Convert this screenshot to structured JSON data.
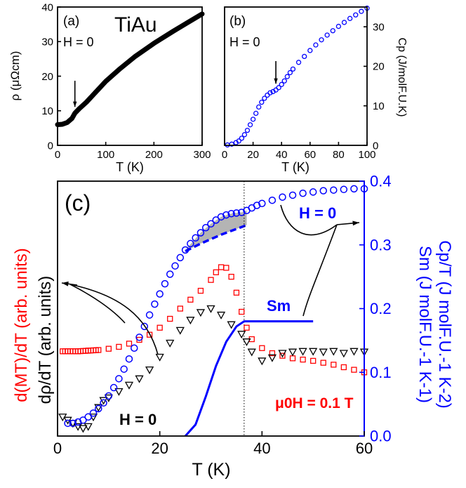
{
  "colors": {
    "black": "#000000",
    "blue": "#0000ff",
    "red": "#ff0000",
    "grey": "#b4b4b4"
  },
  "chart_data": [
    {
      "panel": "a",
      "type": "line",
      "panel_label": "(a)",
      "title": "TiAu",
      "annotation": "H = 0",
      "xlabel": "T (K)",
      "ylabel": "ρ (μΩcm)",
      "xlim": [
        0,
        300
      ],
      "ylim": [
        0,
        40
      ],
      "xticks": [
        "0",
        "100",
        "200",
        "300"
      ],
      "yticks": [
        "0",
        "10",
        "20",
        "30",
        "40"
      ],
      "arrow_at_T": 36,
      "series": [
        {
          "name": "ρ",
          "x": [
            0,
            10,
            20,
            30,
            36,
            45,
            60,
            80,
            100,
            130,
            160,
            200,
            240,
            270,
            300
          ],
          "y": [
            6.0,
            6.1,
            6.6,
            7.8,
            9.3,
            10.6,
            12.5,
            15.5,
            18.5,
            22.2,
            25.6,
            29.5,
            33.0,
            35.5,
            38.0
          ]
        }
      ]
    },
    {
      "panel": "b",
      "type": "scatter",
      "panel_label": "(b)",
      "annotation": "H = 0",
      "xlabel": "T (K)",
      "ylabel": "Cp (J/molF.U.K)",
      "xlim": [
        0,
        100
      ],
      "ylim": [
        0,
        35
      ],
      "xticks": [
        "0",
        "20",
        "40",
        "60",
        "80",
        "100"
      ],
      "yticks": [
        "0",
        "10",
        "20",
        "30"
      ],
      "arrow_at_T": 36,
      "series": [
        {
          "name": "Cp",
          "x": [
            2,
            5,
            8,
            10,
            12,
            14,
            16,
            18,
            20,
            22,
            24,
            26,
            28,
            30,
            32,
            34,
            36,
            38,
            40,
            42,
            44,
            46,
            48,
            52,
            56,
            60,
            64,
            68,
            72,
            76,
            80,
            84,
            88,
            92,
            96,
            100
          ],
          "y": [
            0.1,
            0.3,
            0.7,
            1.1,
            1.8,
            2.7,
            3.8,
            5.2,
            6.6,
            8.1,
            9.7,
            10.9,
            11.9,
            12.7,
            13.3,
            13.6,
            14.0,
            14.6,
            15.4,
            16.3,
            17.4,
            18.4,
            19.3,
            21.0,
            22.5,
            24.0,
            25.4,
            26.7,
            27.9,
            29.0,
            30.1,
            31.1,
            32.1,
            33.0,
            33.9,
            34.7
          ]
        }
      ]
    },
    {
      "panel": "c",
      "type": "scatter",
      "panel_label": "(c)",
      "xlabel": "T (K)",
      "ylabel_left_red": "d(MT)/dT (arb. units)",
      "ylabel_left_black": "dρ/dT (arb. units)",
      "ylabel_right_1": "Sm (J molF.U.-1 K-1)",
      "ylabel_right_2": "Cp/T (J molF.U.-1 K-2)",
      "xlim": [
        0,
        60
      ],
      "ylim_right": [
        0,
        0.4
      ],
      "xticks": [
        "0",
        "20",
        "40",
        "60"
      ],
      "yticks_right": [
        "0.0",
        "0.1",
        "0.2",
        "0.3",
        "0.4"
      ],
      "vline_T": 36.5,
      "annotations": {
        "h0_blue": "H = 0",
        "h0_black": "H = 0",
        "sm": "Sm",
        "field": "μ0H = 0.1 T"
      },
      "series": [
        {
          "name": "Cp/T",
          "axis": "right",
          "x": [
            2,
            3,
            4,
            5,
            6,
            7,
            8,
            9,
            10,
            11,
            12,
            13,
            14,
            15,
            16,
            17,
            18,
            19,
            20,
            21,
            22,
            23,
            24,
            25,
            26,
            27,
            28,
            29,
            30,
            31,
            32,
            33,
            34,
            35,
            36,
            37,
            38,
            39,
            40,
            42,
            44,
            46,
            48,
            50,
            52,
            54,
            56,
            58,
            60
          ],
          "y": [
            0.02,
            0.02,
            0.022,
            0.025,
            0.03,
            0.036,
            0.043,
            0.052,
            0.063,
            0.076,
            0.09,
            0.105,
            0.121,
            0.138,
            0.155,
            0.172,
            0.19,
            0.207,
            0.223,
            0.239,
            0.254,
            0.267,
            0.28,
            0.292,
            0.302,
            0.311,
            0.319,
            0.327,
            0.333,
            0.339,
            0.344,
            0.347,
            0.349,
            0.35,
            0.351,
            0.354,
            0.358,
            0.362,
            0.365,
            0.37,
            0.375,
            0.378,
            0.381,
            0.383,
            0.385,
            0.386,
            0.387,
            0.388,
            0.388
          ]
        },
        {
          "name": "Cp/T lattice baseline",
          "axis": "right",
          "x": [
            25,
            28,
            30,
            32,
            34,
            36,
            37
          ],
          "y": [
            0.29,
            0.302,
            0.309,
            0.316,
            0.322,
            0.328,
            0.331
          ]
        },
        {
          "name": "Sm",
          "axis": "right",
          "x": [
            25,
            27,
            29,
            31,
            33,
            35,
            36.5,
            40,
            45,
            50
          ],
          "y": [
            0.0,
            0.018,
            0.062,
            0.11,
            0.148,
            0.172,
            0.18,
            0.18,
            0.18,
            0.18
          ]
        },
        {
          "name": "d(MT)/dT (μ0H = 0.1 T)",
          "axis": "left",
          "x": [
            2,
            4,
            6,
            8,
            10,
            12,
            14,
            16,
            18,
            20,
            22,
            24,
            26,
            28,
            30,
            31,
            32,
            33,
            34,
            35,
            36,
            37,
            38,
            40,
            42,
            44,
            46,
            48,
            50,
            52,
            54,
            56,
            58,
            60
          ],
          "y": [
            0.133,
            0.133,
            0.134,
            0.135,
            0.137,
            0.14,
            0.145,
            0.151,
            0.159,
            0.17,
            0.184,
            0.2,
            0.214,
            0.228,
            0.245,
            0.257,
            0.265,
            0.264,
            0.25,
            0.225,
            0.195,
            0.17,
            0.152,
            0.138,
            0.13,
            0.126,
            0.122,
            0.12,
            0.118,
            0.115,
            0.112,
            0.108,
            0.104,
            0.1
          ]
        },
        {
          "name": "dρ/dT (H = 0)",
          "axis": "left",
          "x": [
            1,
            2,
            3,
            4,
            5,
            6,
            7,
            8,
            9,
            10,
            12,
            14,
            16,
            18,
            20,
            22,
            24,
            26,
            28,
            30,
            32,
            34,
            36,
            37,
            38,
            40,
            42,
            44,
            46,
            48,
            50,
            52,
            54,
            56,
            58,
            60
          ],
          "y": [
            0.03,
            0.025,
            0.02,
            0.015,
            0.012,
            0.015,
            0.03,
            0.045,
            0.056,
            0.06,
            0.07,
            0.08,
            0.09,
            0.104,
            0.124,
            0.146,
            0.166,
            0.182,
            0.194,
            0.2,
            0.19,
            0.175,
            0.16,
            0.148,
            0.132,
            0.118,
            0.123,
            0.13,
            0.132,
            0.133,
            0.133,
            0.132,
            0.133,
            0.13,
            0.133,
            0.132
          ]
        }
      ]
    }
  ]
}
